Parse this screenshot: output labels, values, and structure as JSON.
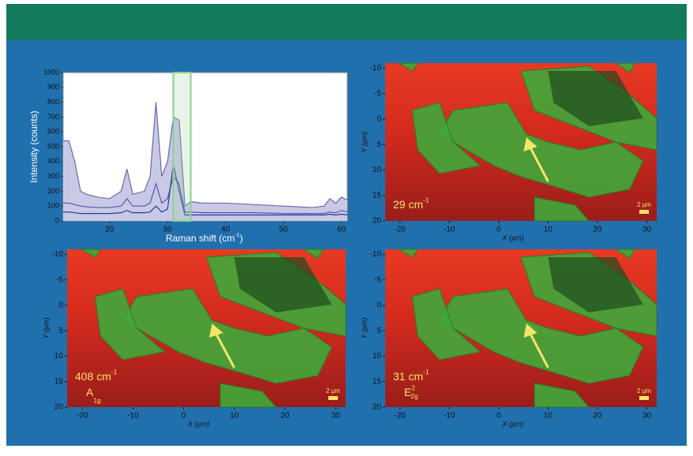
{
  "chart_data": [
    {
      "type": "line",
      "ylabel": "Intensity (counts)",
      "xlabel": {
        "text": "Raman shift (cm",
        "sup": "-1",
        "tail": ")"
      },
      "x": [
        12,
        13,
        14,
        15,
        16,
        18,
        20,
        22,
        23,
        24,
        26,
        27,
        28,
        29,
        30,
        31,
        32,
        33,
        34,
        36,
        40,
        45,
        50,
        55,
        57,
        58,
        59,
        60,
        61
      ],
      "series": [
        {
          "color": "#6a6aa8",
          "fill": "#c9c9e6",
          "values": [
            540,
            540,
            400,
            200,
            180,
            160,
            150,
            200,
            350,
            180,
            200,
            300,
            800,
            300,
            400,
            700,
            680,
            100,
            130,
            120,
            120,
            110,
            100,
            90,
            100,
            150,
            120,
            160,
            140
          ]
        },
        {
          "color": "#5058a8",
          "values": [
            120,
            120,
            110,
            100,
            95,
            90,
            90,
            100,
            150,
            100,
            100,
            120,
            250,
            120,
            150,
            300,
            250,
            60,
            60,
            55,
            55,
            55,
            50,
            50,
            50,
            60,
            55,
            70,
            60
          ]
        },
        {
          "color": "#1f3fa0",
          "values": [
            60,
            60,
            55,
            50,
            50,
            50,
            50,
            55,
            70,
            55,
            55,
            60,
            100,
            60,
            80,
            380,
            200,
            40,
            40,
            40,
            40,
            40,
            40,
            40,
            40,
            45,
            40,
            45,
            40
          ]
        }
      ],
      "highlight": [
        31,
        34
      ],
      "xlim": [
        12,
        61
      ],
      "xticks": [
        20,
        30,
        40,
        50,
        60
      ],
      "ylim": [
        0,
        1000
      ],
      "yticks": [
        0,
        100,
        200,
        300,
        400,
        500,
        600,
        700,
        800,
        900,
        1000
      ]
    },
    {
      "type": "image",
      "xlabel": "X (µm)",
      "ylabel": "Y (µm)",
      "y_inverted": true,
      "xlim": [
        -23,
        32
      ],
      "xticks": [
        -20,
        -10,
        0,
        10,
        20,
        30
      ],
      "ylim": [
        -11,
        20
      ],
      "yticks": [
        -10,
        -5,
        0,
        5,
        10,
        15,
        20
      ],
      "label": {
        "text": "29 cm",
        "sup": "-1"
      },
      "scale_bar": "2 µm"
    },
    {
      "type": "image",
      "xlabel": "X (µm)",
      "ylabel": "Y (µm)",
      "y_inverted": true,
      "xlim": [
        -23,
        32
      ],
      "xticks": [
        -20,
        -10,
        0,
        10,
        20,
        30
      ],
      "ylim": [
        -11,
        20
      ],
      "yticks": [
        -10,
        -5,
        0,
        5,
        10,
        15,
        20
      ],
      "label": {
        "text": "408 cm",
        "sup": "-1"
      },
      "mode": {
        "text": "A",
        "sub": "1g"
      },
      "scale_bar": "2 µm"
    },
    {
      "type": "image",
      "xlabel": "X (µm)",
      "ylabel": "Y (µm)",
      "y_inverted": true,
      "xlim": [
        -23,
        32
      ],
      "xticks": [
        -20,
        -10,
        0,
        10,
        20,
        30
      ],
      "ylim": [
        -11,
        20
      ],
      "yticks": [
        -10,
        -5,
        0,
        5,
        10,
        15,
        20
      ],
      "label": {
        "text": "31 cm",
        "sup": "-1"
      },
      "mode": {
        "text": "E",
        "sup": "2",
        "sub": "2g"
      },
      "scale_bar": "2 µm"
    }
  ]
}
